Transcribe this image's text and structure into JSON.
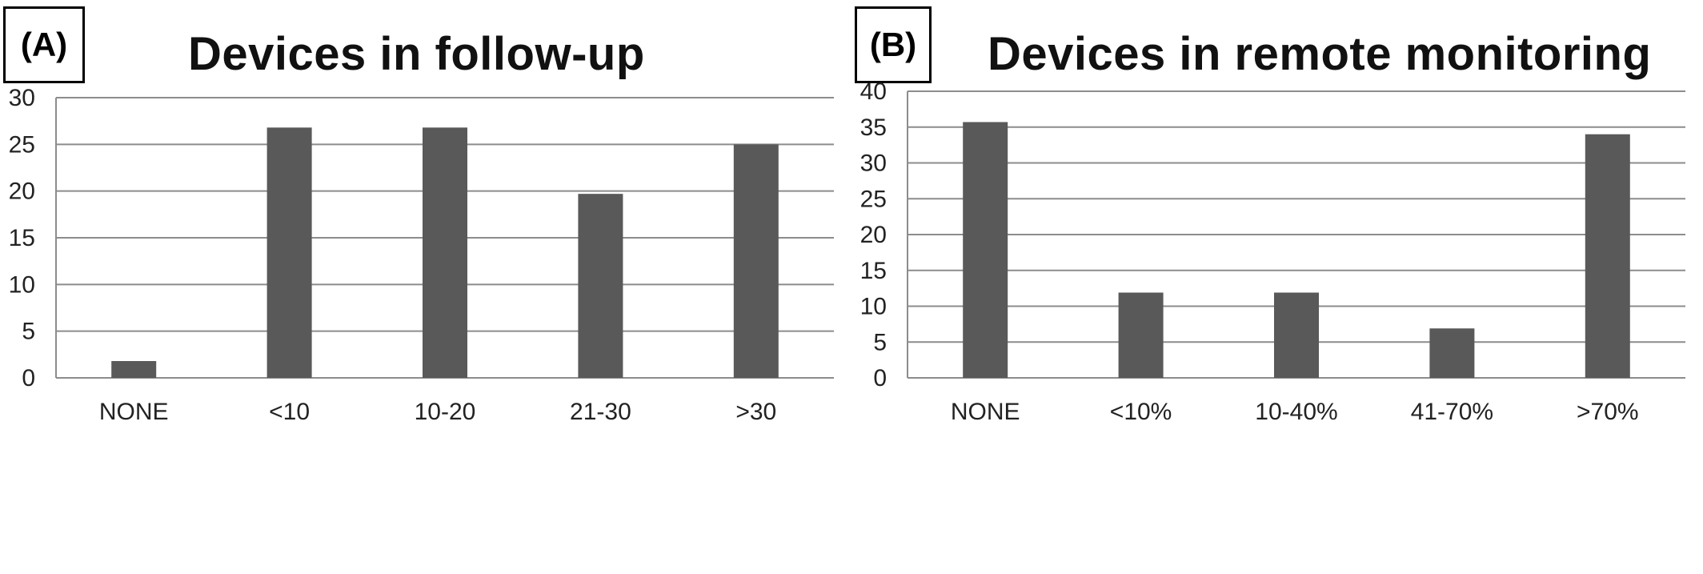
{
  "chart_data": [
    {
      "type": "bar",
      "panel_label": "(A)",
      "title": "Devices in follow-up",
      "categories": [
        "NONE",
        "<10",
        "10-20",
        "21-30",
        ">30"
      ],
      "values": [
        1.8,
        26.8,
        26.8,
        19.7,
        25.0
      ],
      "ylim": [
        0,
        30
      ],
      "yticks": [
        0,
        5,
        10,
        15,
        20,
        25,
        30
      ],
      "grid": true,
      "bar_color": "#595959"
    },
    {
      "type": "bar",
      "panel_label": "(B)",
      "title": "Devices in remote monitoring",
      "categories": [
        "NONE",
        "<10%",
        "10-40%",
        "41-70%",
        ">70%"
      ],
      "values": [
        35.7,
        11.9,
        11.9,
        6.9,
        34.0
      ],
      "ylim": [
        0,
        40
      ],
      "yticks": [
        0,
        5,
        10,
        15,
        20,
        25,
        30,
        35,
        40
      ],
      "grid": true,
      "bar_color": "#595959"
    }
  ]
}
